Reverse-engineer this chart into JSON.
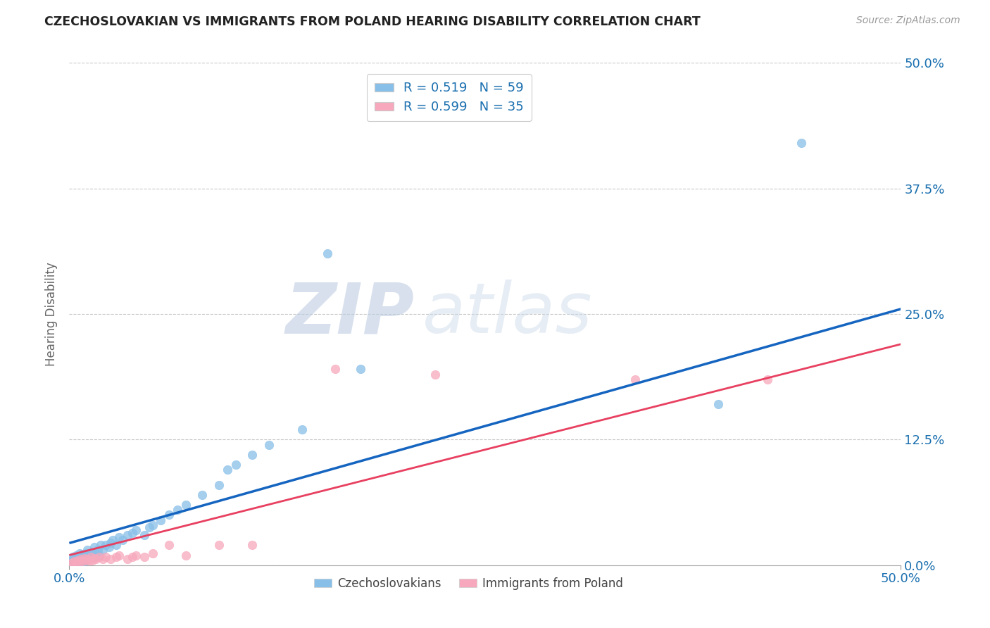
{
  "title": "CZECHOSLOVAKIAN VS IMMIGRANTS FROM POLAND HEARING DISABILITY CORRELATION CHART",
  "source": "Source: ZipAtlas.com",
  "ylabel": "Hearing Disability",
  "xlim": [
    0.0,
    0.5
  ],
  "ylim": [
    0.0,
    0.5
  ],
  "xtick_positions": [
    0.0,
    0.5
  ],
  "xtick_labels": [
    "0.0%",
    "50.0%"
  ],
  "ytick_positions": [
    0.0,
    0.125,
    0.25,
    0.375,
    0.5
  ],
  "ytick_labels": [
    "0.0%",
    "12.5%",
    "25.0%",
    "37.5%",
    "50.0%"
  ],
  "grid_color": "#c8c8c8",
  "background_color": "#ffffff",
  "series1_color": "#88bfe8",
  "series2_color": "#f7a8bc",
  "series1_label": "Czechoslovakians",
  "series2_label": "Immigrants from Poland",
  "R1": "0.519",
  "N1": "59",
  "R2": "0.599",
  "N2": "35",
  "trend1_color": "#1565c0",
  "trend2_color": "#e84060",
  "watermark_zip": "ZIP",
  "watermark_atlas": "atlas",
  "trend1_x0": 0.0,
  "trend1_y0": 0.022,
  "trend1_x1": 0.5,
  "trend1_y1": 0.255,
  "trend2_x0": 0.0,
  "trend2_y0": 0.01,
  "trend2_x1": 0.5,
  "trend2_y1": 0.22,
  "series1_x": [
    0.001,
    0.002,
    0.002,
    0.003,
    0.003,
    0.004,
    0.004,
    0.005,
    0.005,
    0.006,
    0.006,
    0.007,
    0.007,
    0.008,
    0.008,
    0.009,
    0.009,
    0.01,
    0.01,
    0.011,
    0.011,
    0.012,
    0.013,
    0.014,
    0.015,
    0.015,
    0.016,
    0.017,
    0.018,
    0.019,
    0.02,
    0.022,
    0.024,
    0.025,
    0.026,
    0.028,
    0.03,
    0.032,
    0.035,
    0.038,
    0.04,
    0.045,
    0.048,
    0.05,
    0.055,
    0.06,
    0.065,
    0.07,
    0.08,
    0.09,
    0.095,
    0.1,
    0.11,
    0.12,
    0.14,
    0.155,
    0.175,
    0.39,
    0.44
  ],
  "series1_y": [
    0.005,
    0.003,
    0.008,
    0.002,
    0.007,
    0.004,
    0.01,
    0.003,
    0.008,
    0.005,
    0.012,
    0.004,
    0.009,
    0.006,
    0.011,
    0.004,
    0.01,
    0.005,
    0.012,
    0.007,
    0.015,
    0.008,
    0.01,
    0.013,
    0.008,
    0.018,
    0.012,
    0.015,
    0.01,
    0.02,
    0.015,
    0.02,
    0.018,
    0.022,
    0.025,
    0.02,
    0.028,
    0.025,
    0.03,
    0.032,
    0.035,
    0.03,
    0.038,
    0.04,
    0.045,
    0.05,
    0.055,
    0.06,
    0.07,
    0.08,
    0.095,
    0.1,
    0.11,
    0.12,
    0.135,
    0.31,
    0.195,
    0.16,
    0.42
  ],
  "series2_x": [
    0.001,
    0.002,
    0.003,
    0.004,
    0.005,
    0.006,
    0.007,
    0.008,
    0.009,
    0.01,
    0.011,
    0.012,
    0.013,
    0.014,
    0.015,
    0.016,
    0.018,
    0.02,
    0.022,
    0.025,
    0.028,
    0.03,
    0.035,
    0.038,
    0.04,
    0.045,
    0.05,
    0.06,
    0.07,
    0.09,
    0.11,
    0.16,
    0.22,
    0.34,
    0.42
  ],
  "series2_y": [
    0.002,
    0.003,
    0.004,
    0.003,
    0.005,
    0.004,
    0.006,
    0.004,
    0.007,
    0.005,
    0.006,
    0.005,
    0.008,
    0.005,
    0.007,
    0.006,
    0.008,
    0.006,
    0.008,
    0.006,
    0.008,
    0.01,
    0.006,
    0.008,
    0.01,
    0.008,
    0.012,
    0.02,
    0.01,
    0.02,
    0.02,
    0.195,
    0.19,
    0.185,
    0.185
  ]
}
